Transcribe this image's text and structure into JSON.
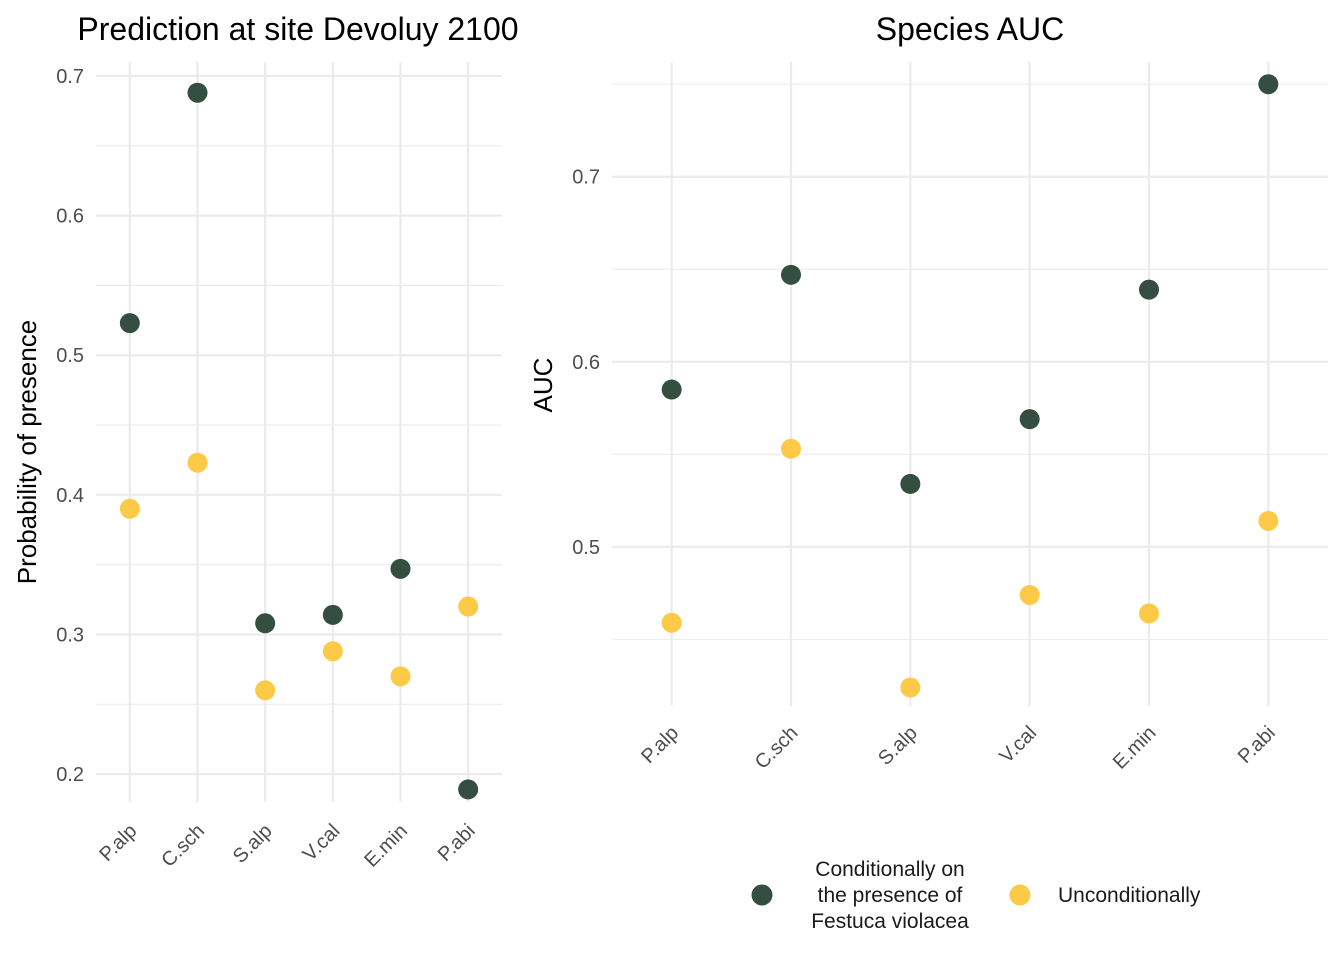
{
  "colors": {
    "conditional": "#344E41",
    "unconditional": "#FCCA46",
    "grid": "#ebebeb"
  },
  "legend": {
    "position": "bottom",
    "items": [
      {
        "key": "conditional",
        "lines": [
          "Conditionally on",
          "the presence of",
          "Festuca violacea"
        ]
      },
      {
        "key": "unconditional",
        "lines": [
          "Unconditionally"
        ]
      }
    ]
  },
  "chart_data": [
    {
      "type": "scatter",
      "title": "Prediction at site Devoluy 2100",
      "xlabel": "",
      "ylabel": "Probability of presence",
      "categories": [
        "P.alp",
        "C.sch",
        "S.alp",
        "V.cal",
        "E.min",
        "P.abi"
      ],
      "ylim": [
        0.18,
        0.71
      ],
      "yticks": [
        0.2,
        0.3,
        0.4,
        0.5,
        0.6,
        0.7
      ],
      "ytick_labels": [
        "0.2",
        "0.3",
        "0.4",
        "0.5",
        "0.6",
        "0.7"
      ],
      "grid": true,
      "series": [
        {
          "key": "conditional",
          "values": [
            0.523,
            0.688,
            0.308,
            0.314,
            0.347,
            0.189
          ]
        },
        {
          "key": "unconditional",
          "values": [
            0.39,
            0.423,
            0.26,
            0.288,
            0.27,
            0.32
          ]
        }
      ]
    },
    {
      "type": "scatter",
      "title": "Species AUC",
      "xlabel": "",
      "ylabel": "AUC",
      "categories": [
        "P.alp",
        "C.sch",
        "S.alp",
        "V.cal",
        "E.min",
        "P.abi"
      ],
      "ylim": [
        0.414,
        0.762
      ],
      "yticks": [
        0.5,
        0.6,
        0.7
      ],
      "ytick_labels": [
        "0.5",
        "0.6",
        "0.7"
      ],
      "grid": true,
      "series": [
        {
          "key": "conditional",
          "values": [
            0.585,
            0.647,
            0.534,
            0.569,
            0.639,
            0.75
          ]
        },
        {
          "key": "unconditional",
          "values": [
            0.459,
            0.553,
            0.424,
            0.474,
            0.464,
            0.514
          ]
        }
      ]
    }
  ]
}
